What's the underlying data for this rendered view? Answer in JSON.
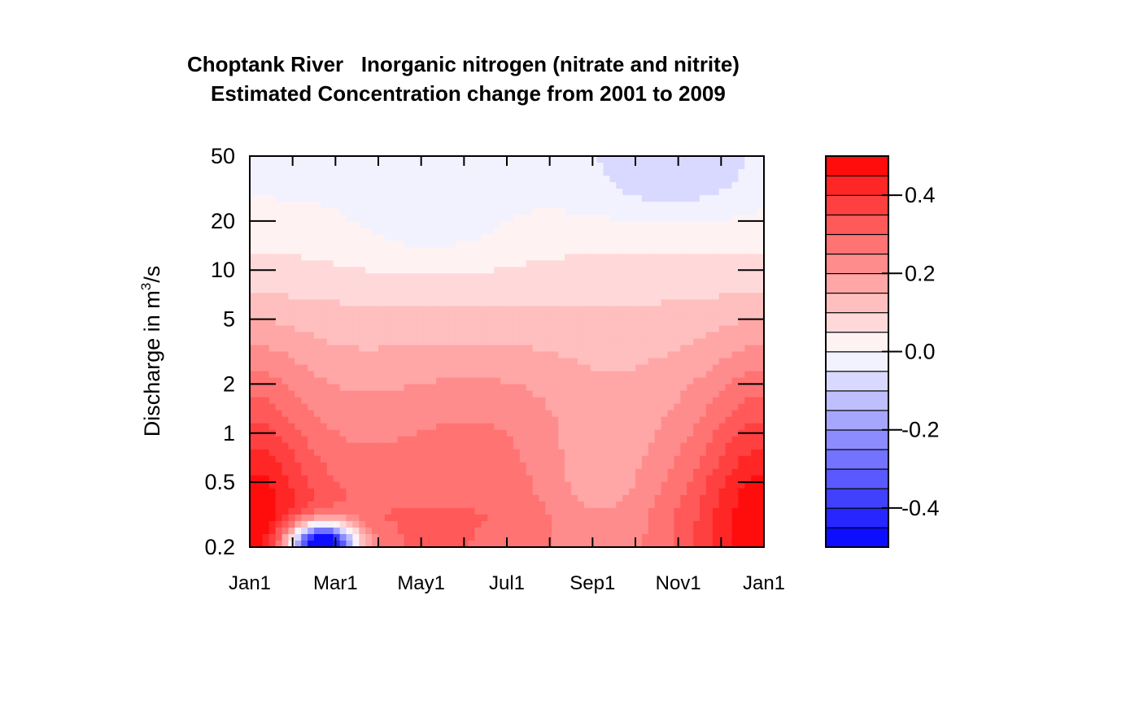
{
  "chart_data": {
    "type": "heatmap",
    "title_line1": "Choptank River   Inorganic nitrogen (nitrate and nitrite)",
    "title_line2": "Estimated Concentration change from 2001 to 2009",
    "ylabel_main": "Discharge in m",
    "ylabel_sup": "3",
    "ylabel_tail": "/s",
    "x_ticks": [
      "Jan1",
      "Mar1",
      "May1",
      "Jul1",
      "Sep1",
      "Nov1",
      "Jan1"
    ],
    "y_ticks": [
      "0.2",
      "0.5",
      "1",
      "2",
      "5",
      "10",
      "20",
      "50"
    ],
    "y_tick_values": [
      0.2,
      0.5,
      1,
      2,
      5,
      10,
      20,
      50
    ],
    "ylim": [
      0.2,
      50
    ],
    "y_scale": "log",
    "colorbar_ticks": [
      "0.4",
      "0.2",
      "0.0",
      "-0.2",
      "-0.4"
    ],
    "colorbar_tick_values": [
      0.4,
      0.2,
      0.0,
      -0.2,
      -0.4
    ],
    "colorbar_range": [
      -0.5,
      0.5
    ],
    "colorbar_levels": 20,
    "color_low": "#0000FF",
    "color_mid": "#FFFFFF",
    "color_high": "#FF0000"
  }
}
